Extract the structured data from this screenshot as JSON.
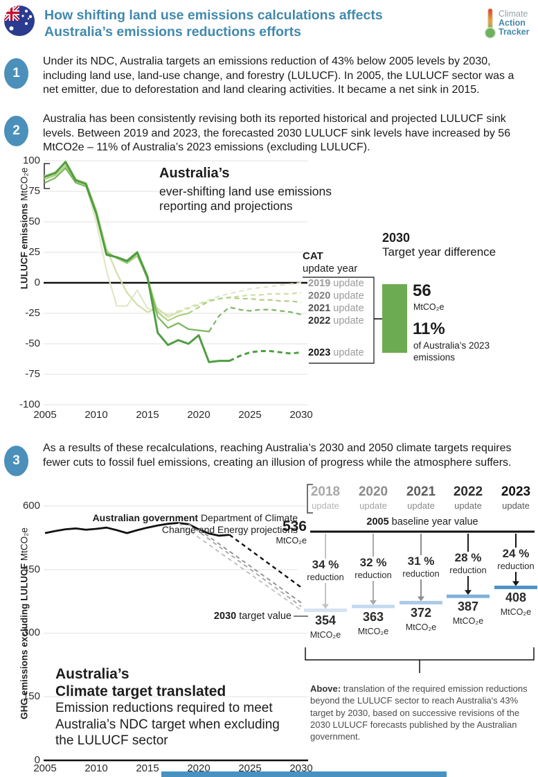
{
  "header": {
    "title_line1": "How shifting land use emissions calculations affects",
    "title_line2": "Australia’s emissions reductions efforts",
    "title_color": "#4289ad",
    "accent_blue": "#4a90ba",
    "logo": {
      "line1": "Climate",
      "line2": "Action",
      "line3": "Tracker"
    }
  },
  "points": [
    {
      "number": "1",
      "text": "Under its NDC, Australia targets an emissions reduction of 43% below 2005 levels by 2030, including land use, land-use change, and forestry (LULUCF). In 2005, the LULUCF sector was a net emitter, due to deforestation and land clearing activities. It became a net sink in 2015."
    },
    {
      "number": "2",
      "text": "Australia has been consistently revising both its reported historical and projected LULUCF sink levels. Between 2019 and 2023, the forecasted 2030 LULUCF sink levels have increased by 56 MtCO2e – 11% of Australia’s 2023 emissions (excluding LULUCF)."
    },
    {
      "number": "3",
      "text": "As a results of these recalculations, reaching Australia’s 2030 and 2050 climate targets requires fewer cuts to fossil fuel emissions, creating an illusion of progress while the atmosphere suffers."
    }
  ],
  "chart_data": [
    {
      "type": "line",
      "title_bold": "Australia’s",
      "title_line2": "ever-shifting land use emissions",
      "title_line3": "reporting and projections",
      "ylabel_bold": "LULUCF emissions",
      "ylabel_unit": "MtCO₂e",
      "xlim": [
        2005,
        2030
      ],
      "ylim": [
        -100,
        100
      ],
      "xticks": [
        2005,
        2010,
        2015,
        2020,
        2025,
        2030
      ],
      "yticks": [
        100,
        75,
        50,
        25,
        0,
        -25,
        -50,
        -75,
        -100
      ],
      "grid": "on",
      "zero_line": true,
      "legend_position": "right",
      "legend_header_bold": "CAT",
      "legend_header_rest": "update year",
      "legend_update_word": "update",
      "years": [
        2005,
        2006,
        2007,
        2008,
        2009,
        2010,
        2011,
        2012,
        2013,
        2014,
        2015,
        2016,
        2017,
        2018,
        2019,
        2020,
        2021,
        2022,
        2023,
        2024,
        2025,
        2026,
        2027,
        2028,
        2029,
        2030
      ],
      "series": [
        {
          "name": "2019 update",
          "year": "2019",
          "color": "#e0e7c8",
          "label_color": "#9b9b9b",
          "solid_until": 2017,
          "values": [
            88,
            91,
            97,
            83,
            80,
            50,
            10,
            -19,
            -19,
            -6,
            -21,
            -23,
            -26,
            -23,
            -20,
            -17,
            -14,
            -11,
            -9,
            -7,
            -5,
            -4,
            -3,
            -2,
            -1,
            0
          ]
        },
        {
          "name": "2020 update",
          "year": "2020",
          "color": "#cfdfa6",
          "label_color": "#7d7d7d",
          "solid_until": 2018,
          "values": [
            86,
            89,
            100,
            85,
            82,
            60,
            28,
            8,
            -8,
            -18,
            -24,
            -21,
            -28,
            -24,
            -21,
            -18,
            -15,
            -13,
            -12,
            -11,
            -10,
            -10,
            -9,
            -9,
            -9,
            -8
          ]
        },
        {
          "name": "2021 update",
          "year": "2021",
          "color": "#aed084",
          "label_color": "#525252",
          "solid_until": 2019,
          "values": [
            85,
            88,
            96,
            84,
            81,
            58,
            26,
            20,
            16,
            22,
            4,
            -24,
            -31,
            -27,
            -25,
            -20,
            -15,
            -13,
            -12,
            -13,
            -13,
            -14,
            -14,
            -15,
            -15,
            -16
          ]
        },
        {
          "name": "2022 update",
          "year": "2022",
          "color": "#7cb65f",
          "label_color": "#303030",
          "solid_until": 2021,
          "values": [
            82,
            86,
            94,
            82,
            79,
            56,
            24,
            21,
            17,
            24,
            3,
            -28,
            -37,
            -33,
            -38,
            -39,
            -40,
            -27,
            -20,
            -22,
            -23,
            -22,
            -22,
            -23,
            -24,
            -26
          ]
        },
        {
          "name": "2023 update",
          "year": "2023",
          "color": "#4f9e42",
          "label_color": "#141414",
          "solid_until": 2023,
          "values": [
            87,
            90,
            99,
            84,
            81,
            57,
            23,
            21,
            18,
            25,
            5,
            -41,
            -51,
            -47,
            -50,
            -43,
            -65,
            -64,
            -64,
            -60,
            -57,
            -56,
            -56,
            -57,
            -58,
            -57
          ]
        }
      ],
      "annotation": {
        "title_bold": "2030",
        "title_rest": "Target year difference",
        "bar_color": "#6cab51",
        "diff_value": "56",
        "diff_unit": "MtCO₂e",
        "pct_value": "11%",
        "pct_caption": "of Australia’s 2023 emissions"
      }
    },
    {
      "type": "line",
      "header_bold": "Australian government",
      "header_rest": "Department of Climate Change and Energy projections",
      "ylabel_bold": "GHG emissions excluding LULUCF",
      "ylabel_unit": "MtCO₂e",
      "xlim": [
        2005,
        2030
      ],
      "ylim": [
        0,
        600
      ],
      "xticks": [
        2005,
        2010,
        2015,
        2020,
        2025,
        2030
      ],
      "yticks": [
        600,
        450,
        300,
        150,
        0
      ],
      "grid": "on",
      "historical": {
        "name": "GHG emissions excluding LULUCF",
        "color": "#111111",
        "years": [
          2005,
          2006,
          2007,
          2008,
          2009,
          2010,
          2011,
          2012,
          2013,
          2014,
          2015,
          2016,
          2017,
          2018,
          2019,
          2020,
          2021,
          2022,
          2023
        ],
        "values": [
          536,
          541,
          545,
          547,
          544,
          546,
          549,
          543,
          536,
          543,
          549,
          554,
          558,
          560,
          557,
          545,
          535,
          530,
          532
        ]
      },
      "projections": [
        {
          "update": "2018",
          "from_year": 2018,
          "from_value": 560,
          "to_year": 2030,
          "to_value": 354,
          "color": "#bdbdbd"
        },
        {
          "update": "2020",
          "from_year": 2019,
          "from_value": 557,
          "to_year": 2030,
          "to_value": 363,
          "color": "#a5a5a5"
        },
        {
          "update": "2021",
          "from_year": 2020,
          "from_value": 545,
          "to_year": 2030,
          "to_value": 372,
          "color": "#8c8c8c"
        },
        {
          "update": "2023",
          "from_year": 2023,
          "from_value": 532,
          "to_year": 2030,
          "to_value": 408,
          "color": "#111111"
        }
      ],
      "baseline": {
        "value": "536",
        "unit": "MtCO₂e",
        "label_bold": "2005",
        "label_rest": "baseline year value",
        "level": 536
      },
      "target_label_bold": "2030",
      "target_label_rest": "target value",
      "update_word": "update",
      "reduction_word": "reduction",
      "columns": [
        {
          "year": "2018",
          "pct": "34 %",
          "value": "354",
          "unit": "MtCO₂e",
          "target": 354,
          "year_color": "#a8a8a8",
          "update_color": "#b5b5b5",
          "arrow_color": "#c3c3c3",
          "line_color": "#d5e3f2"
        },
        {
          "year": "2020",
          "pct": "32 %",
          "value": "363",
          "unit": "MtCO₂e",
          "target": 363,
          "year_color": "#8b8b8b",
          "update_color": "#a2a2a2",
          "arrow_color": "#a8a8a8",
          "line_color": "#c3d9ee"
        },
        {
          "year": "2021",
          "pct": "31 %",
          "value": "372",
          "unit": "MtCO₂e",
          "target": 372,
          "year_color": "#5e5e5e",
          "update_color": "#8a8a8a",
          "arrow_color": "#8d8d8d",
          "line_color": "#aacae7"
        },
        {
          "year": "2022",
          "pct": "28 %",
          "value": "387",
          "unit": "MtCO₂e",
          "target": 387,
          "year_color": "#2e2e2e",
          "update_color": "#6f6f6f",
          "arrow_color": "#1c1c1c",
          "line_color": "#7fb0d8"
        },
        {
          "year": "2023",
          "pct": "24 %",
          "value": "408",
          "unit": "MtCO₂e",
          "target": 408,
          "year_color": "#121212",
          "update_color": "#565656",
          "arrow_color": "#111111",
          "line_color": "#4e92c6"
        }
      ],
      "chart_title_bold1": "Australia’s",
      "chart_title_bold2": "Climate target translated",
      "chart_title_body": "Emission reductions required to meet Australia’s NDC target when excluding the LULUCF sector",
      "caption_bold": "Above:",
      "caption_rest": "translation of the required emission reductions beyond the LULUCF sector to reach Australia's 43% target by 2030, based on successive revisions of the 2030 LULUCF forecasts published by the Australian government.",
      "footer_bar_color": "#4792c3"
    }
  ]
}
